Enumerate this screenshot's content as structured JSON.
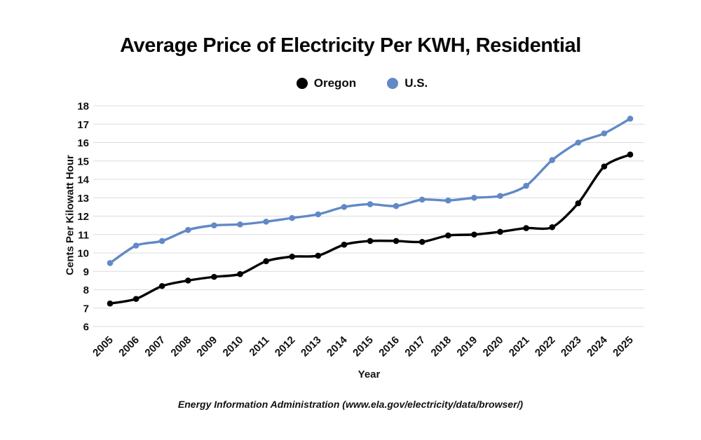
{
  "title": "Average Price of Electricity Per KWH, Residential",
  "legend": {
    "items": [
      {
        "label": "Oregon",
        "color": "#000000"
      },
      {
        "label": "U.S.",
        "color": "#6189c6"
      }
    ]
  },
  "footer": "Energy Information Administration (www.ela.gov/electricity/data/browser/)",
  "chart_data": {
    "type": "line",
    "title": "Average Price of Electricity Per KWH, Residential",
    "xlabel": "Year",
    "ylabel": "Cents Per Kilowatt Hour",
    "x": [
      2005,
      2006,
      2007,
      2008,
      2009,
      2010,
      2011,
      2012,
      2013,
      2014,
      2015,
      2016,
      2017,
      2018,
      2019,
      2020,
      2021,
      2022,
      2023,
      2024,
      2025
    ],
    "series": [
      {
        "name": "Oregon",
        "color": "#000000",
        "values": [
          7.25,
          7.5,
          8.2,
          8.5,
          8.7,
          8.85,
          9.55,
          9.8,
          9.85,
          10.45,
          10.65,
          10.65,
          10.6,
          10.95,
          11.0,
          11.15,
          11.35,
          11.4,
          12.7,
          14.7,
          15.35
        ]
      },
      {
        "name": "U.S.",
        "color": "#6189c6",
        "values": [
          9.45,
          10.4,
          10.65,
          11.25,
          11.5,
          11.55,
          11.7,
          11.9,
          12.1,
          12.5,
          12.65,
          12.55,
          12.9,
          12.85,
          13.0,
          13.1,
          13.65,
          15.05,
          16.0,
          16.5,
          17.3
        ]
      }
    ],
    "ylim": [
      6,
      18
    ],
    "y_ticks": [
      6,
      7,
      8,
      9,
      10,
      11,
      12,
      13,
      14,
      15,
      16,
      17,
      18
    ],
    "grid": "horizontal",
    "gridline_color": "#dcdcdc",
    "legend_position": "top",
    "marker": "circle"
  }
}
